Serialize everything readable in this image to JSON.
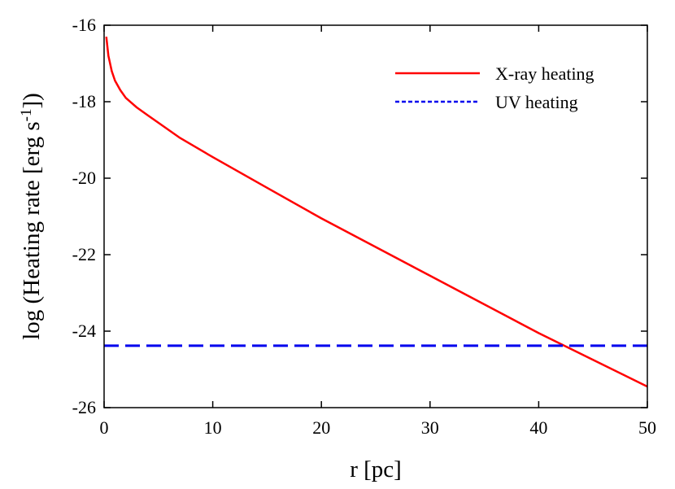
{
  "chart_data": {
    "type": "line",
    "title": "",
    "xlabel": "r [pc]",
    "ylabel": {
      "prefix": "log (Heating rate [erg s",
      "superscript": "-1",
      "suffix": "])"
    },
    "xlim": [
      0,
      50
    ],
    "ylim": [
      -26,
      -16
    ],
    "xticks": [
      0,
      10,
      20,
      30,
      40,
      50
    ],
    "yticks": [
      -26,
      -24,
      -22,
      -20,
      -18,
      -16
    ],
    "grid": false,
    "legend_position": "top-right",
    "series": [
      {
        "name": "X-ray heating",
        "style": "solid",
        "color": "#ff0000",
        "x": [
          0.2,
          0.4,
          0.7,
          1.0,
          1.5,
          2.0,
          3.0,
          4.0,
          5.0,
          7.0,
          10.0,
          15.0,
          20.0,
          25.0,
          30.0,
          35.0,
          40.0,
          45.0,
          50.0
        ],
        "y": [
          -16.3,
          -16.8,
          -17.2,
          -17.45,
          -17.7,
          -17.9,
          -18.15,
          -18.35,
          -18.55,
          -18.95,
          -19.45,
          -20.25,
          -21.05,
          -21.8,
          -22.55,
          -23.3,
          -24.05,
          -24.75,
          -25.45
        ]
      },
      {
        "name": "UV heating",
        "style": "dashed",
        "color": "#0000ee",
        "x": [
          0,
          50
        ],
        "y": [
          -24.38,
          -24.38
        ]
      }
    ]
  }
}
